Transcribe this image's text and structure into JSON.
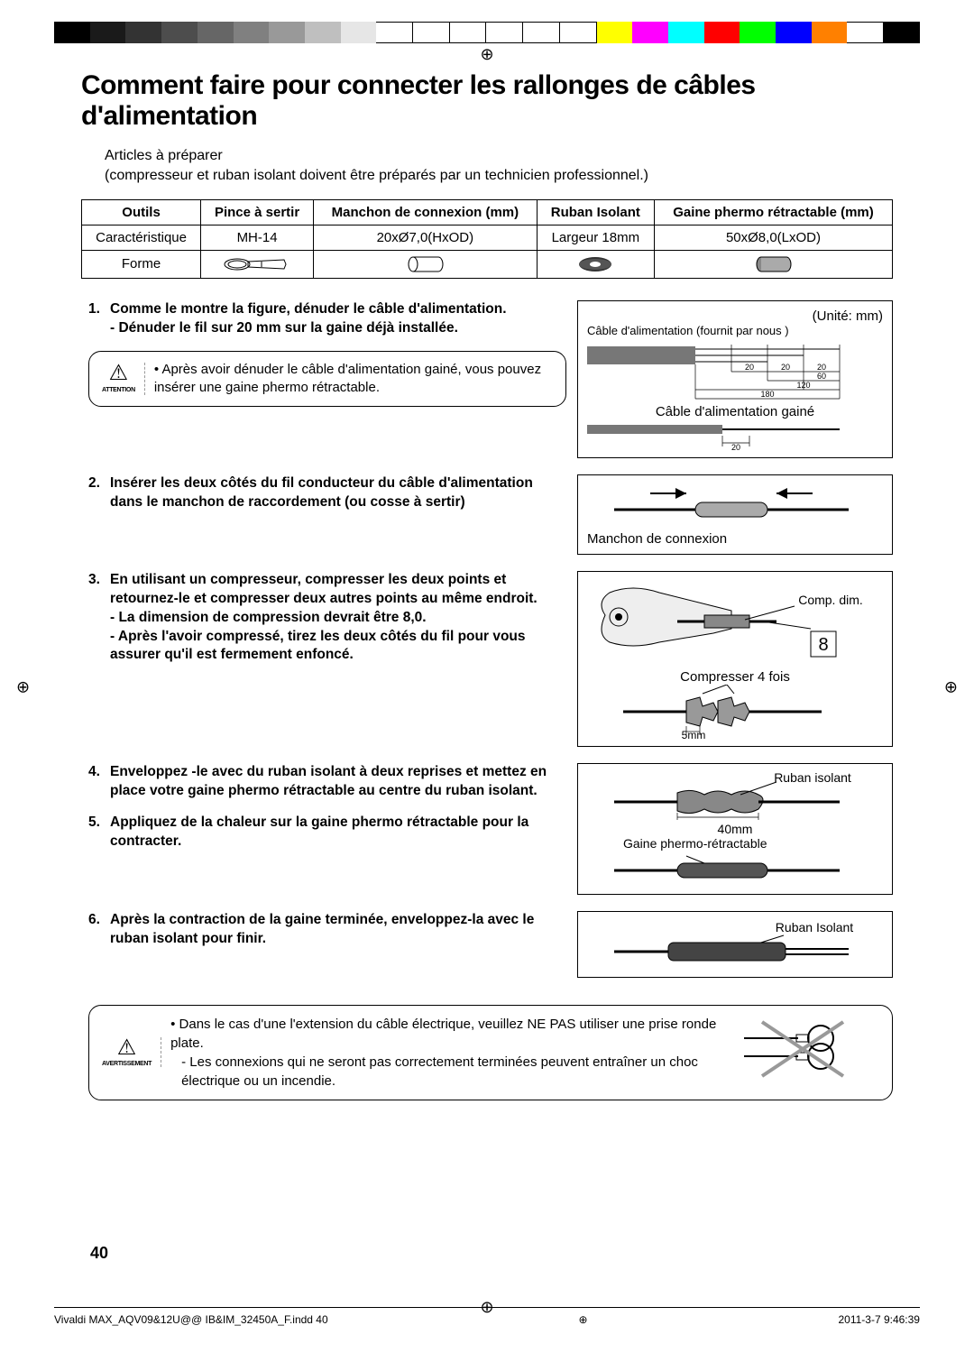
{
  "colorbar": [
    "#000000",
    "#1a1a1a",
    "#333333",
    "#4d4d4d",
    "#666666",
    "#808080",
    "#999999",
    "#bfbfbf",
    "#e6e6e6",
    "#ffffff",
    "#ffffff",
    "#ffffff",
    "#ffffff",
    "#ffffff",
    "#ffffff",
    "#ffff00",
    "#ff00ff",
    "#00ffff",
    "#ff0000",
    "#00ff00",
    "#0000ff",
    "#ff8000",
    "#ffffff",
    "#000000"
  ],
  "reg_mark": "⊕",
  "title": "Comment faire pour connecter les rallonges de câbles d'alimentation",
  "intro_line1": "Articles à préparer",
  "intro_line2": "(compresseur et ruban isolant doivent être préparés par un technicien professionnel.)",
  "table": {
    "headers": [
      "Outils",
      "Pince à sertir",
      "Manchon de connexion (mm)",
      "Ruban Isolant",
      "Gaine phermo rétractable (mm)"
    ],
    "row1_label": "Caractéristique",
    "row1": [
      "MH-14",
      "20xØ7,0(HxOD)",
      "Largeur 18mm",
      "50xØ8,0(LxOD)"
    ],
    "row2_label": "Forme"
  },
  "step1_title": "Comme le montre la figure, dénuder le câble d'alimentation.",
  "step1_sub": "- Dénuder le fil sur 20 mm sur la gaine déjà installée.",
  "attention_label": "ATTENTION",
  "attention_text": "Après avoir dénuder le câble d'alimentation gainé, vous pouvez insérer une gaine phermo rétractable.",
  "step2_text": "Insérer les deux côtés du fil conducteur du câble d'alimentation dans le manchon de raccordement (ou cosse à sertir)",
  "step3_title": "En utilisant un compresseur, compresser les deux points et retournez-le et compresser deux autres points au même endroit.",
  "step3_sub1": "- La dimension de compression devrait être 8,0.",
  "step3_sub2": "- Après l'avoir compressé, tirez les deux côtés du fil pour vous assurer qu'il est fermement enfoncé.",
  "step4_text": "Enveloppez -le avec du ruban isolant à deux reprises et mettez en place votre gaine phermo rétractable au centre du ruban isolant.",
  "step5_text": "Appliquez de la chaleur sur la gaine phermo rétractable pour la contracter.",
  "step6_text": "Après la contraction de la gaine terminée, enveloppez-la avec le ruban isolant pour finir.",
  "warning_label": "AVERTISSEMENT",
  "warning_bullet1": "Dans le cas d'une l'extension du câble électrique, veuillez NE PAS utiliser une prise ronde plate.",
  "warning_bullet2": "- Les connexions qui ne seront pas correctement terminées peuvent entraîner un choc électrique ou un incendie.",
  "fig1": {
    "unit": "(Unité: mm)",
    "label1": "Câble d'alimentation (fournit par nous )",
    "dims": {
      "a": "20",
      "b": "20",
      "c": "20",
      "d": "60",
      "e": "120",
      "f": "180"
    },
    "label2": "Câble d'alimentation gainé",
    "dim_g": "20"
  },
  "fig2_label": "Manchon de connexion",
  "fig3": {
    "comp_dim": "Comp. dim.",
    "eight": "8",
    "label_compress": "Compresser 4 fois",
    "five_mm": "5mm"
  },
  "fig4": {
    "tape": "Ruban isolant",
    "forty": "40mm",
    "shrink": "Gaine phermo-rétractable"
  },
  "fig5_label": "Ruban Isolant",
  "page_number": "40",
  "footer_left": "Vivaldi MAX_AQV09&12U@@ IB&IM_32450A_F.indd   40",
  "footer_right": "2011-3-7   9:46:39"
}
